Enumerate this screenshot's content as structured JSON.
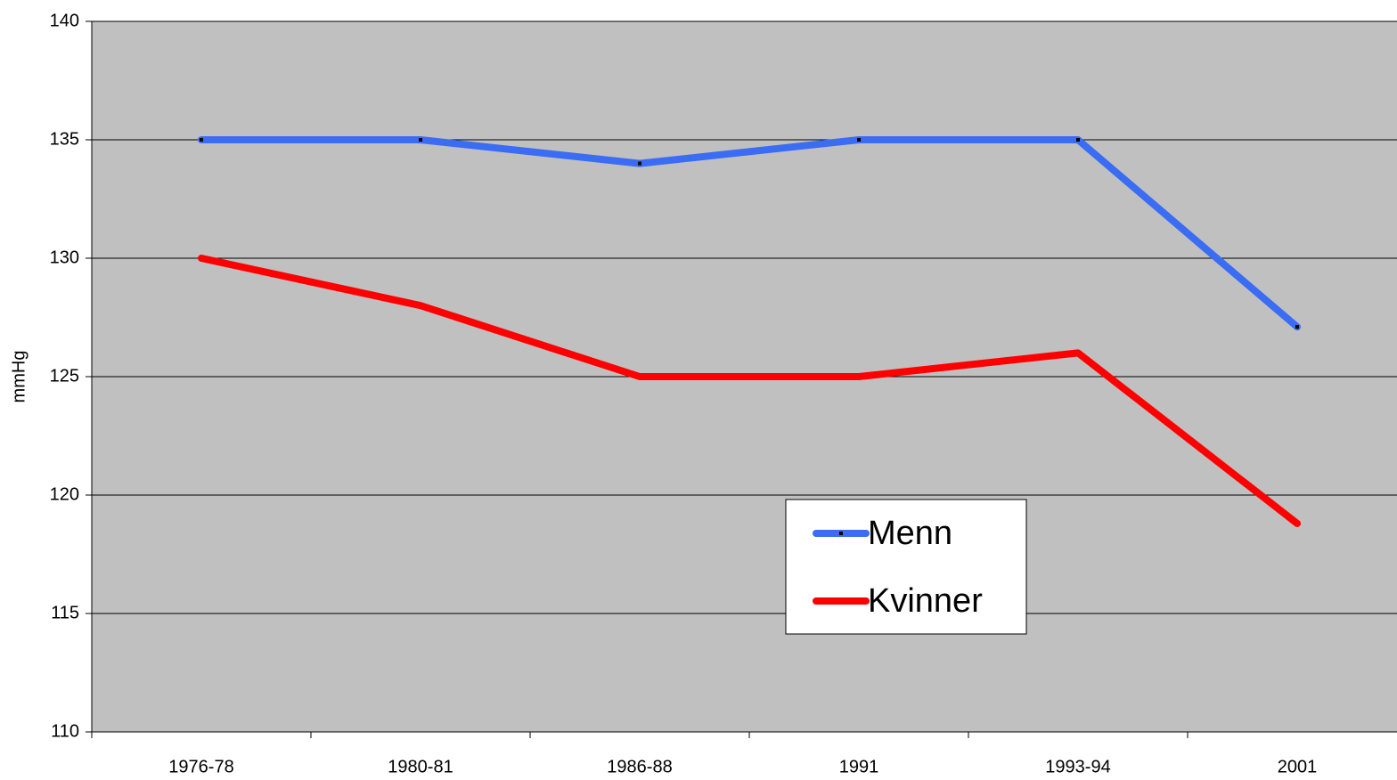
{
  "chart_data": {
    "type": "line",
    "y_label": "mmHg",
    "categories": [
      "1976-78",
      "1980-81",
      "1986-88",
      "1991",
      "1993-94",
      "2001"
    ],
    "series": [
      {
        "name": "Menn",
        "color": "#3a6cf4",
        "values": [
          135,
          135,
          134,
          135,
          135,
          127.1
        ]
      },
      {
        "name": "Kvinner",
        "color": "#ff0000",
        "values": [
          130,
          128,
          125,
          125,
          126,
          118.8
        ]
      }
    ],
    "ylim": [
      110,
      140
    ],
    "yticks": [
      110,
      115,
      120,
      125,
      130,
      135,
      140
    ],
    "grid": true,
    "plot_background": "#c0c0c0",
    "legend": "lower right"
  }
}
